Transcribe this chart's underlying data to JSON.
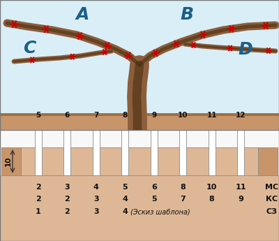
{
  "top_bg_color": "#daeef7",
  "ground_color": "#c8956a",
  "bottom_bg_color": "#deb896",
  "label_A": "A",
  "label_B": "B",
  "label_C": "C",
  "label_D": "D",
  "label_color": "#1a5f8a",
  "star_color": "#cc0000",
  "slot_top_labels": [
    "5",
    "6",
    "7",
    "8",
    "9",
    "10",
    "11",
    "12"
  ],
  "row_MC": [
    "2",
    "3",
    "4",
    "5",
    "6",
    "8",
    "10",
    "11",
    "МС"
  ],
  "row_KC": [
    "2",
    "2",
    "3",
    "4",
    "5",
    "7",
    "8",
    "9",
    "КС"
  ],
  "row_SZ": [
    "1",
    "2",
    "3",
    "4",
    "",
    "",
    "",
    "",
    "СЗ"
  ],
  "sketch_text": "(Эскиз шаблона)",
  "height_label": "10",
  "white_color": "#ffffff",
  "text_color": "#111111"
}
